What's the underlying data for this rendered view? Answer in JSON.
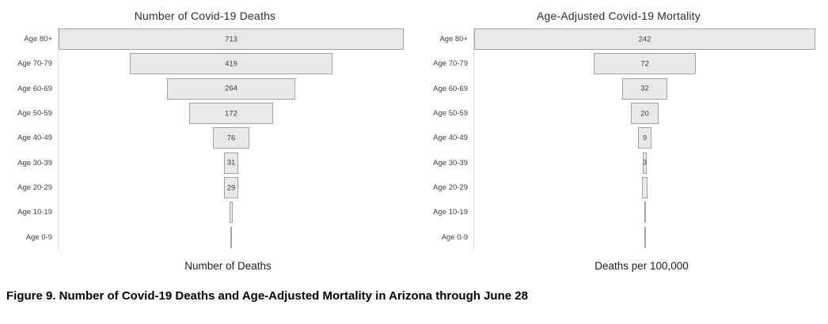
{
  "caption": "Figure 9. Number of Covid-19 Deaths and Age-Adjusted Mortality in Arizona through June 28",
  "colors": {
    "background": "#ffffff",
    "bar_fill": "#e9e9e9",
    "bar_border": "#a3a3a3",
    "axis_line": "#d9d9d9",
    "label_text": "#404040",
    "title_text": "#2f2f2f",
    "caption_text": "#000000"
  },
  "chart_data": [
    {
      "type": "bar",
      "variant": "centered-funnel",
      "title": "Number of Covid-19 Deaths",
      "xlabel": "Number of Deaths",
      "categories": [
        "Age 80+",
        "Age 70-79",
        "Age 60-69",
        "Age 50-59",
        "Age 40-49",
        "Age 30-39",
        "Age 20-29",
        "Age 10-19",
        "Age 0-9"
      ],
      "values": [
        713,
        419,
        264,
        172,
        76,
        31,
        29,
        7,
        3
      ],
      "data_labels": [
        "713",
        "419",
        "264",
        "172",
        "76",
        "31",
        "29",
        "",
        ""
      ],
      "xlim": [
        0,
        713
      ],
      "grid": false,
      "legend": false
    },
    {
      "type": "bar",
      "variant": "centered-funnel",
      "title": "Age-Adjusted Covid-19 Mortality",
      "xlabel": "Deaths per 100,000",
      "categories": [
        "Age 80+",
        "Age 70-79",
        "Age 60-69",
        "Age 50-59",
        "Age 40-49",
        "Age 30-39",
        "Age 20-29",
        "Age 10-19",
        "Age 0-9"
      ],
      "values": [
        242,
        72,
        32,
        20,
        9,
        3,
        4,
        1,
        0.5
      ],
      "data_labels": [
        "242",
        "72",
        "32",
        "20",
        "9",
        "3",
        "",
        "",
        ""
      ],
      "xlim": [
        0,
        242
      ],
      "grid": false,
      "legend": false
    }
  ]
}
